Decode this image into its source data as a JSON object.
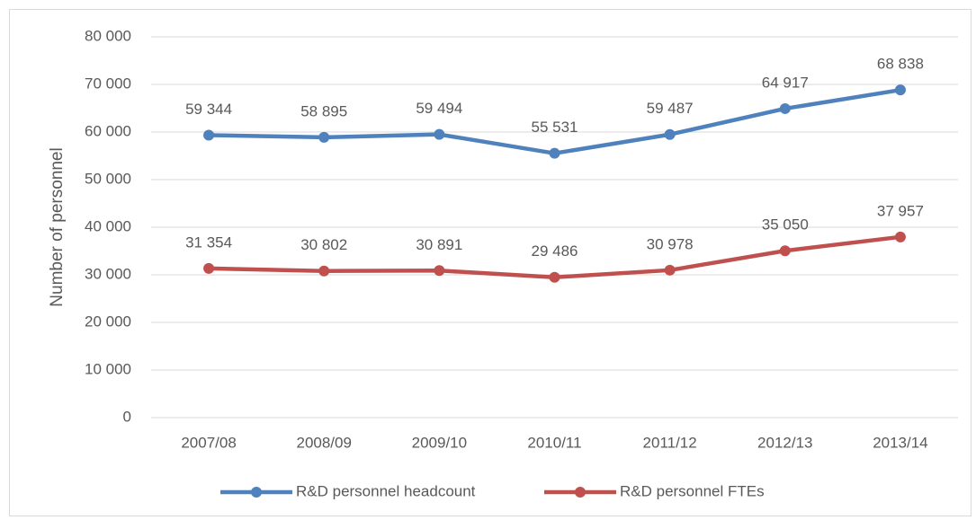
{
  "chart_data": {
    "type": "line",
    "y_label": "Number of personnel",
    "categories": [
      "2007/08",
      "2008/09",
      "2009/10",
      "2010/11",
      "2011/12",
      "2012/13",
      "2013/14"
    ],
    "series": [
      {
        "name": "R&D personnel headcount",
        "color": "#4f81bd",
        "values": [
          59344,
          58895,
          59494,
          55531,
          59487,
          64917,
          68838
        ],
        "value_labels": [
          "59 344",
          "58 895",
          "59 494",
          "55 531",
          "59 487",
          "64 917",
          "68 838"
        ]
      },
      {
        "name": "R&D personnel FTEs",
        "color": "#c0504d",
        "values": [
          31354,
          30802,
          30891,
          29486,
          30978,
          35050,
          37957
        ],
        "value_labels": [
          "31 354",
          "30 802",
          "30 891",
          "29 486",
          "30 978",
          "35 050",
          "37 957"
        ]
      }
    ],
    "ylim": [
      0,
      80000
    ],
    "yticks": [
      0,
      {
        "value": 10000,
        "label": "10 000"
      },
      {
        "value": 20000,
        "label": "20 000"
      },
      {
        "value": 30000,
        "label": "30 000"
      },
      {
        "value": 40000,
        "label": "40 000"
      },
      {
        "value": 50000,
        "label": "50 000"
      },
      {
        "value": 60000,
        "label": "60 000"
      },
      {
        "value": 70000,
        "label": "70 000"
      },
      {
        "value": 80000,
        "label": "80 000"
      }
    ],
    "grid": true,
    "legend": "bottom"
  }
}
